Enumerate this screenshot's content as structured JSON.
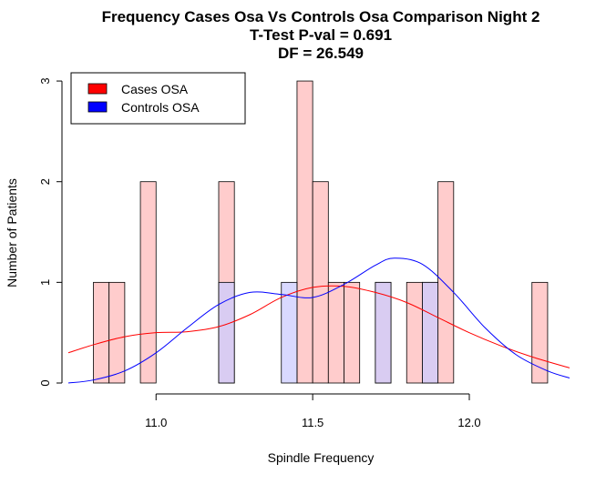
{
  "chart_data": {
    "type": "bar",
    "title_lines": [
      "Frequency Cases Osa Vs Controls Osa Comparison Night 2",
      "T-Test P-val = 0.691",
      "DF = 26.549"
    ],
    "xlabel": "Spindle Frequency",
    "ylabel": "Number of Patients",
    "xlim": [
      10.72,
      12.32
    ],
    "ylim": [
      0,
      3.1
    ],
    "x_ticks": [
      11.0,
      11.5,
      12.0
    ],
    "x_tick_labels": [
      "11.0",
      "11.5",
      "12.0"
    ],
    "y_ticks": [
      0,
      1,
      2,
      3
    ],
    "y_tick_labels": [
      "0",
      "1",
      "2",
      "3"
    ],
    "bin_width": 0.05,
    "legend": {
      "position": "top-left",
      "entries": [
        {
          "label": "Cases OSA",
          "color": "#ff0000"
        },
        {
          "label": "Controls OSA",
          "color": "#0000ff"
        }
      ]
    },
    "series": [
      {
        "name": "Cases OSA",
        "fill": "#ffcccc",
        "line_color": "#ff0000",
        "bins": [
          {
            "x0": 10.8,
            "count": 1
          },
          {
            "x0": 10.85,
            "count": 1
          },
          {
            "x0": 10.95,
            "count": 2
          },
          {
            "x0": 11.2,
            "count": 2
          },
          {
            "x0": 11.45,
            "count": 3
          },
          {
            "x0": 11.5,
            "count": 2
          },
          {
            "x0": 11.55,
            "count": 1
          },
          {
            "x0": 11.6,
            "count": 1
          },
          {
            "x0": 11.7,
            "count": 1
          },
          {
            "x0": 11.8,
            "count": 1
          },
          {
            "x0": 11.85,
            "count": 1
          },
          {
            "x0": 11.9,
            "count": 2
          },
          {
            "x0": 12.2,
            "count": 1
          }
        ],
        "density_curve": [
          [
            10.72,
            0.3
          ],
          [
            10.8,
            0.38
          ],
          [
            10.9,
            0.46
          ],
          [
            11.0,
            0.5
          ],
          [
            11.1,
            0.51
          ],
          [
            11.2,
            0.56
          ],
          [
            11.3,
            0.68
          ],
          [
            11.4,
            0.85
          ],
          [
            11.5,
            0.95
          ],
          [
            11.6,
            0.96
          ],
          [
            11.7,
            0.9
          ],
          [
            11.8,
            0.8
          ],
          [
            11.9,
            0.65
          ],
          [
            12.0,
            0.5
          ],
          [
            12.1,
            0.37
          ],
          [
            12.2,
            0.26
          ],
          [
            12.32,
            0.15
          ]
        ]
      },
      {
        "name": "Controls OSA",
        "fill": "#ccccff",
        "line_color": "#0000ff",
        "bins": [
          {
            "x0": 11.2,
            "count": 1
          },
          {
            "x0": 11.4,
            "count": 1
          },
          {
            "x0": 11.7,
            "count": 1
          },
          {
            "x0": 11.85,
            "count": 1
          }
        ],
        "density_curve": [
          [
            10.72,
            0.0
          ],
          [
            10.8,
            0.03
          ],
          [
            10.9,
            0.12
          ],
          [
            11.0,
            0.3
          ],
          [
            11.1,
            0.55
          ],
          [
            11.2,
            0.78
          ],
          [
            11.3,
            0.9
          ],
          [
            11.4,
            0.88
          ],
          [
            11.5,
            0.85
          ],
          [
            11.6,
            0.98
          ],
          [
            11.7,
            1.17
          ],
          [
            11.76,
            1.24
          ],
          [
            11.85,
            1.18
          ],
          [
            11.95,
            0.9
          ],
          [
            12.05,
            0.55
          ],
          [
            12.15,
            0.28
          ],
          [
            12.25,
            0.12
          ],
          [
            12.32,
            0.05
          ]
        ]
      }
    ]
  }
}
